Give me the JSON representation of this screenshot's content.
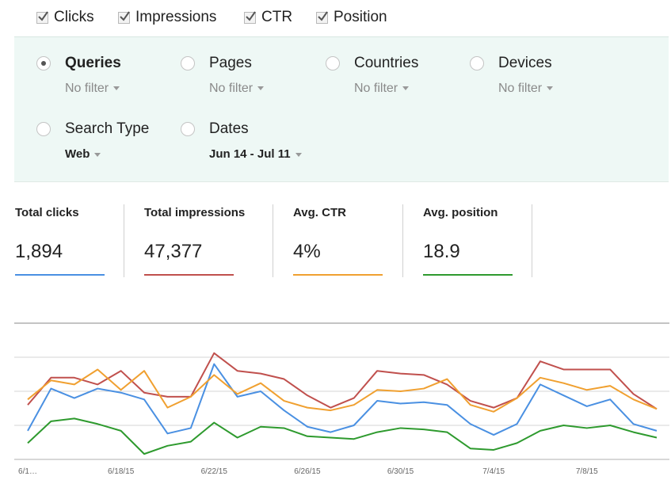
{
  "metrics": [
    {
      "label": "Clicks",
      "checked": true
    },
    {
      "label": "Impressions",
      "checked": true
    },
    {
      "label": "CTR",
      "checked": true
    },
    {
      "label": "Position",
      "checked": true
    }
  ],
  "dimensions": {
    "queries": {
      "label": "Queries",
      "filter": "No filter",
      "selected": true
    },
    "pages": {
      "label": "Pages",
      "filter": "No filter",
      "selected": false
    },
    "countries": {
      "label": "Countries",
      "filter": "No filter",
      "selected": false
    },
    "devices": {
      "label": "Devices",
      "filter": "No filter",
      "selected": false
    },
    "search_type": {
      "label": "Search Type",
      "filter": "Web",
      "selected": false
    },
    "dates": {
      "label": "Dates",
      "filter": "Jun 14 - Jul 11",
      "selected": false
    }
  },
  "summary": {
    "clicks": {
      "label": "Total clicks",
      "value": "1,894",
      "color": "#4a90e2"
    },
    "impressions": {
      "label": "Total impressions",
      "value": "47,377",
      "color": "#c0504d"
    },
    "ctr": {
      "label": "Avg. CTR",
      "value": "4%",
      "color": "#f0a030"
    },
    "position": {
      "label": "Avg. position",
      "value": "18.9",
      "color": "#2e9a2e"
    }
  },
  "chart_data": {
    "type": "line",
    "x": [
      "6/14/15",
      "6/15/15",
      "6/16/15",
      "6/17/15",
      "6/18/15",
      "6/19/15",
      "6/20/15",
      "6/21/15",
      "6/22/15",
      "6/23/15",
      "6/24/15",
      "6/25/15",
      "6/26/15",
      "6/27/15",
      "6/28/15",
      "6/29/15",
      "6/30/15",
      "7/1/15",
      "7/2/15",
      "7/3/15",
      "7/4/15",
      "7/5/15",
      "7/6/15",
      "7/7/15",
      "7/8/15",
      "7/9/15",
      "7/10/15",
      "7/11/15"
    ],
    "x_tick_labels": [
      "6/1…",
      "6/18/15",
      "6/22/15",
      "6/26/15",
      "6/30/15",
      "7/4/15",
      "7/8/15"
    ],
    "x_tick_indices": [
      0,
      4,
      8,
      12,
      16,
      20,
      24
    ],
    "ylim": [
      0,
      100
    ],
    "grid": true,
    "series": [
      {
        "name": "Clicks",
        "color": "#4a90e2",
        "values": [
          21,
          52,
          45,
          52,
          49,
          44,
          19,
          23,
          70,
          46,
          50,
          36,
          24,
          20,
          25,
          43,
          41,
          42,
          40,
          26,
          18,
          26,
          55,
          47,
          39,
          44,
          26,
          21
        ]
      },
      {
        "name": "Impressions",
        "color": "#c0504d",
        "values": [
          40,
          60,
          60,
          55,
          65,
          49,
          46,
          46,
          78,
          65,
          63,
          59,
          47,
          38,
          45,
          65,
          63,
          62,
          55,
          43,
          38,
          45,
          72,
          66,
          66,
          66,
          48,
          37
        ]
      },
      {
        "name": "CTR",
        "color": "#f0a030",
        "values": [
          44,
          58,
          55,
          66,
          51,
          65,
          38,
          46,
          62,
          48,
          56,
          43,
          38,
          36,
          40,
          51,
          50,
          52,
          59,
          40,
          35,
          45,
          60,
          56,
          51,
          54,
          44,
          37
        ]
      },
      {
        "name": "Position",
        "color": "#2e9a2e",
        "values": [
          12,
          28,
          30,
          26,
          21,
          4,
          10,
          13,
          27,
          16,
          24,
          23,
          17,
          16,
          15,
          20,
          23,
          22,
          20,
          8,
          7,
          12,
          21,
          25,
          23,
          25,
          20,
          16
        ]
      }
    ]
  }
}
